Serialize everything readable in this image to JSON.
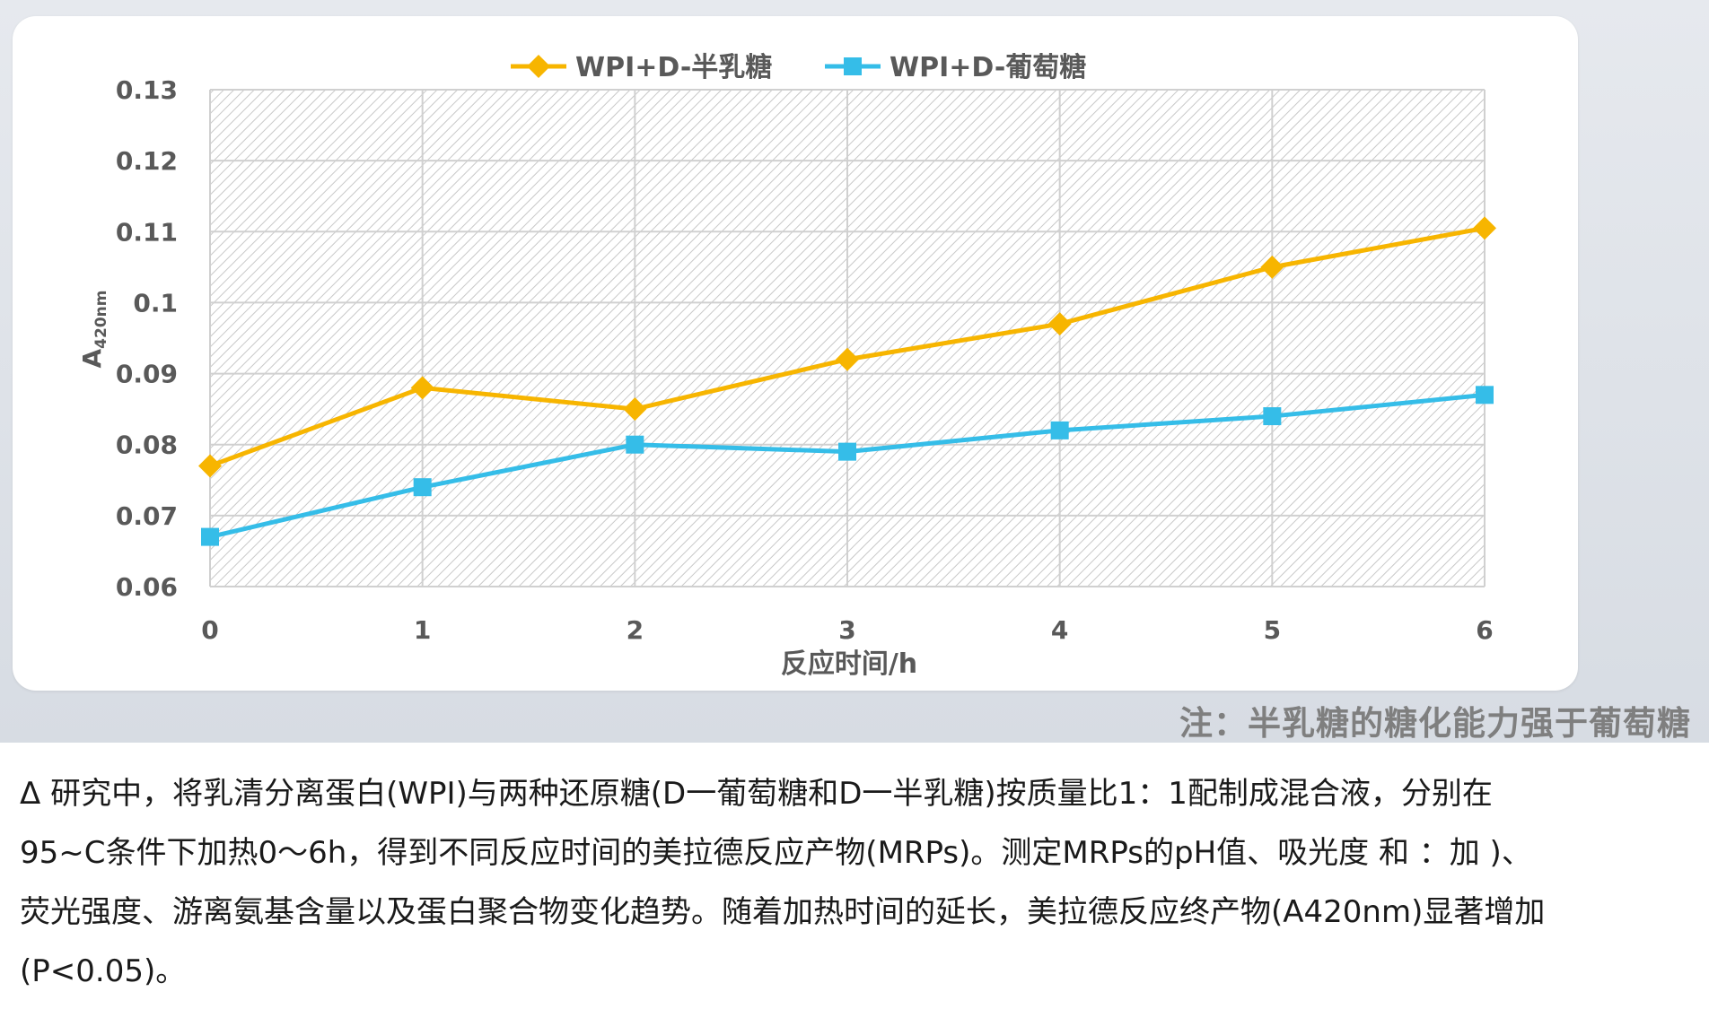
{
  "chart_data": {
    "type": "line",
    "categories": [
      "0",
      "1",
      "2",
      "3",
      "4",
      "5",
      "6"
    ],
    "x": [
      0,
      1,
      2,
      3,
      4,
      5,
      6
    ],
    "series": [
      {
        "name": "WPI+D-半乳糖",
        "color": "#f7b500",
        "marker": "diamond",
        "values": [
          0.077,
          0.088,
          0.085,
          0.092,
          0.097,
          0.105,
          0.1105
        ]
      },
      {
        "name": "WPI+D-葡萄糖",
        "color": "#35bde8",
        "marker": "square",
        "values": [
          0.067,
          0.074,
          0.08,
          0.079,
          0.082,
          0.084,
          0.087
        ]
      }
    ],
    "xlabel": "反应时间/h",
    "ylabel_main": "A",
    "ylabel_sub": "420nm",
    "ylim": [
      0.06,
      0.13
    ],
    "yticks": [
      0.06,
      0.07,
      0.08,
      0.09,
      0.1,
      0.11,
      0.12,
      0.13
    ],
    "ytick_labels": [
      "0.06",
      "0.07",
      "0.08",
      "0.09",
      "0.1",
      "0.11",
      "0.12",
      "0.13"
    ],
    "grid": true,
    "plot_background": "hatched",
    "legend_position": "top-center"
  },
  "note": "注：半乳糖的糖化能力强于葡萄糖",
  "description": [
    " Δ 研究中，将乳清分离蛋白(WPI)与两种还原糖(D一葡萄糖和D一半乳糖)按质量比1：1配制成混合液，分别在",
    "95~C条件下加热0～6h，得到不同反应时间的美拉德反应产物(MRPs)。测定MRPs的pH值、吸光度 和 ：加 )、",
    "荧光强度、游离氨基含量以及蛋白聚合物变化趋势。随着加热时间的延长，美拉德反应终产物(A420nm)显著增加",
    "(P<0.05)。"
  ]
}
